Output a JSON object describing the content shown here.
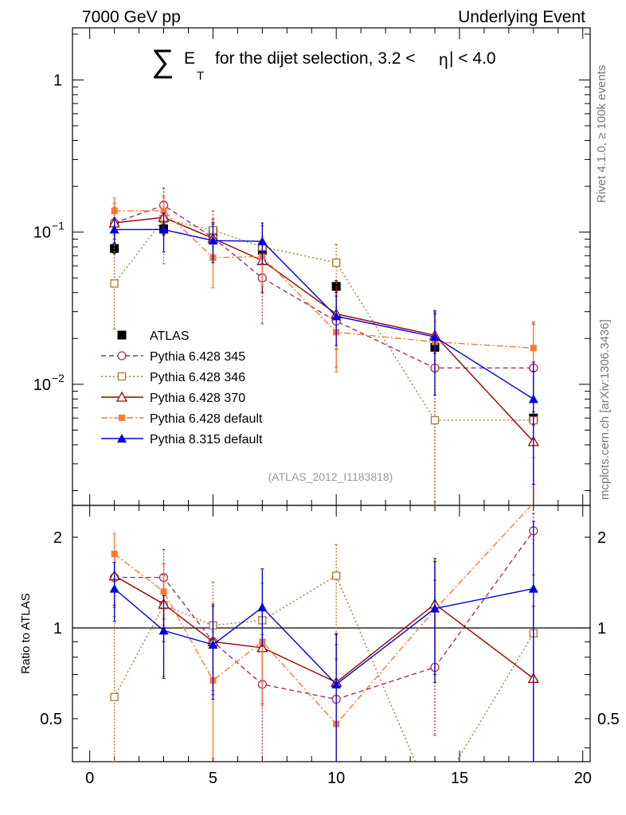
{
  "header": {
    "left": "7000 GeV pp",
    "right": "Underlying Event"
  },
  "side_text": {
    "rivet": "Rivet 4.1.0, ≥ 100k events",
    "mcplots": "mcplots.cern.ch [arXiv:1306.3436]"
  },
  "chart_data": [
    {
      "type": "scatter",
      "title": "∑ E_T for the dijet selection, 3.2 <|η| < 4.0",
      "title_parts": {
        "sum": "∑",
        "E": "E",
        "T": "T",
        "rest1": "for the dijet selection, 3.2 <",
        "eta": "η",
        "rest2": "| < 4.0"
      },
      "analysis_label": "(ATLAS_2012_I1183818)",
      "xlim": [
        -0.7,
        20.3
      ],
      "ylim": [
        0.0016,
        2.2
      ],
      "yscale": "log",
      "yticks": [
        {
          "value": 0.01,
          "base": "10",
          "exp": "−2"
        },
        {
          "value": 0.1,
          "base": "10",
          "exp": "−1"
        },
        {
          "value": 1,
          "label": "1"
        }
      ],
      "series": [
        {
          "name": "ATLAS",
          "color": "#000000",
          "marker": "square-filled",
          "line": "none",
          "x": [
            1,
            3,
            5,
            7,
            10,
            14,
            18
          ],
          "y": [
            0.078,
            0.105,
            0.101,
            0.076,
            0.044,
            0.0175,
            0.006
          ],
          "err_up": [
            0.006,
            0.008,
            0.007,
            0.006,
            0.004,
            0.0015,
            0.0006
          ],
          "err_dn": [
            0.006,
            0.008,
            0.007,
            0.006,
            0.004,
            0.0015,
            0.0006
          ]
        },
        {
          "name": "Pythia 6.428 345",
          "color": "#993366",
          "marker": "circle-open",
          "line": "dashed",
          "x": [
            1,
            3,
            5,
            7,
            10,
            14,
            18
          ],
          "y": [
            0.115,
            0.15,
            0.092,
            0.05,
            0.026,
            0.0128,
            0.0128
          ],
          "err_up": [
            0.04,
            0.045,
            0.03,
            0.025,
            0.015,
            0.017,
            0.012
          ],
          "err_dn": [
            0.03,
            0.035,
            0.025,
            0.025,
            0.013,
            0.0125,
            0.0125
          ]
        },
        {
          "name": "Pythia 6.428 346",
          "color": "#AA7733",
          "marker": "square-open",
          "line": "dotted",
          "x": [
            1,
            3,
            5,
            7,
            10,
            14,
            18
          ],
          "y": [
            0.046,
            0.122,
            0.103,
            0.08,
            0.063,
            0.0058,
            0.0058
          ],
          "err_up": [
            0.05,
            0.05,
            0.035,
            0.03,
            0.02,
            0.024,
            0.02
          ],
          "err_dn": [
            0.023,
            0.06,
            0.04,
            0.035,
            0.05,
            0.0057,
            0.0057
          ]
        },
        {
          "name": "Pythia 6.428 370",
          "color": "#990000",
          "marker": "triangle-open",
          "line": "solid",
          "x": [
            1,
            3,
            5,
            7,
            10,
            14,
            18
          ],
          "y": [
            0.115,
            0.125,
            0.091,
            0.065,
            0.029,
            0.021,
            0.0042
          ],
          "err_up": [
            0.03,
            0.035,
            0.025,
            0.025,
            0.015,
            0.008,
            0.008
          ],
          "err_dn": [
            0.025,
            0.03,
            0.02,
            0.025,
            0.012,
            0.009,
            0.0041
          ]
        },
        {
          "name": "Pythia 6.428 default",
          "color": "#FF7733",
          "marker": "square-filled-small",
          "line": "dashdot",
          "x": [
            1,
            3,
            5,
            7,
            10,
            14,
            18
          ],
          "y": [
            0.138,
            0.138,
            0.068,
            0.069,
            0.022,
            0.019,
            0.0173
          ],
          "err_up": [
            0.03,
            0.03,
            0.02,
            0.025,
            0.01,
            0.007,
            0.008
          ],
          "err_dn": [
            0.03,
            0.03,
            0.025,
            0.025,
            0.01,
            0.007,
            0.014
          ]
        },
        {
          "name": "Pythia 8.315 default",
          "color": "#0000DD",
          "marker": "triangle-filled",
          "line": "solid",
          "x": [
            1,
            3,
            5,
            7,
            10,
            14,
            18
          ],
          "y": [
            0.104,
            0.104,
            0.088,
            0.087,
            0.028,
            0.0205,
            0.008
          ],
          "err_up": [
            0.02,
            0.03,
            0.025,
            0.028,
            0.01,
            0.01,
            0.006
          ],
          "err_dn": [
            0.02,
            0.03,
            0.025,
            0.025,
            0.01,
            0.012,
            0.0058
          ]
        }
      ]
    },
    {
      "type": "scatter",
      "ylabel": "Ratio to ATLAS",
      "xlim": [
        -0.7,
        20.3
      ],
      "ylim": [
        0.36,
        2.55
      ],
      "yscale": "log",
      "yticks": [
        {
          "value": 0.5,
          "label": "0.5"
        },
        {
          "value": 1,
          "label": "1"
        },
        {
          "value": 2,
          "label": "2"
        }
      ],
      "xticks": [
        0,
        5,
        10,
        15,
        20
      ],
      "reference_line": 1,
      "series": [
        {
          "name": "Pythia 6.428 345",
          "color": "#993366",
          "marker": "circle-open",
          "line": "dashed",
          "x": [
            1,
            3,
            5,
            7,
            10,
            14,
            18
          ],
          "y": [
            1.47,
            1.47,
            0.9,
            0.65,
            0.58,
            0.74,
            2.1
          ],
          "err_up": [
            0.3,
            0.35,
            0.3,
            0.3,
            0.3,
            0.7,
            0.3
          ],
          "err_dn": [
            0.3,
            0.4,
            0.3,
            0.35,
            0.25,
            0.3,
            0.6
          ]
        },
        {
          "name": "Pythia 6.428 346",
          "color": "#AA7733",
          "marker": "square-open",
          "line": "dotted",
          "x": [
            1,
            3,
            5,
            7,
            10,
            14,
            18,
            13.4,
            14.6
          ],
          "y": [
            0.59,
            1.19,
            1.02,
            1.06,
            1.49,
            0.33,
            0.96,
            0.33,
            0.33
          ],
          "points_visible": [
            true,
            true,
            true,
            true,
            true,
            false,
            true,
            false,
            false
          ],
          "err_up": [
            0.5,
            0.45,
            0.4,
            0.35,
            0.4,
            0.5,
            0.4,
            0,
            0
          ],
          "err_dn": [
            0.3,
            0.5,
            0.4,
            0.4,
            0.7,
            0.3,
            0.6,
            0,
            0
          ]
        },
        {
          "name": "Pythia 6.428 370",
          "color": "#990000",
          "marker": "triangle-open",
          "line": "solid",
          "x": [
            1,
            3,
            5,
            7,
            10,
            14,
            18
          ],
          "y": [
            1.49,
            1.2,
            0.9,
            0.86,
            0.66,
            1.2,
            0.68
          ],
          "err_up": [
            0.3,
            0.3,
            0.3,
            0.3,
            0.3,
            0.5,
            0.5
          ],
          "err_dn": [
            0.3,
            0.3,
            0.3,
            0.3,
            0.3,
            0.5,
            0.4
          ]
        },
        {
          "name": "Pythia 6.428 default",
          "color": "#FF7733",
          "marker": "square-filled-small",
          "line": "dashdot",
          "x": [
            1,
            3,
            5,
            7,
            10,
            14,
            18,
            19.8
          ],
          "y": [
            1.76,
            1.32,
            0.67,
            0.9,
            0.48,
            1.15,
            2.6,
            2.6
          ],
          "points_visible": [
            true,
            true,
            true,
            true,
            true,
            false,
            false,
            false
          ],
          "err_up": [
            0.3,
            0.3,
            0.3,
            0.3,
            0.3,
            0.5,
            0,
            0
          ],
          "err_dn": [
            0.3,
            0.3,
            0.3,
            0.35,
            0.3,
            0.5,
            0,
            0
          ]
        },
        {
          "name": "Pythia 8.315 default",
          "color": "#0000DD",
          "marker": "triangle-filled",
          "line": "solid",
          "x": [
            1,
            3,
            5,
            7,
            10,
            14,
            18
          ],
          "y": [
            1.35,
            0.98,
            0.88,
            1.17,
            0.65,
            1.16,
            1.35
          ],
          "err_up": [
            0.3,
            0.3,
            0.3,
            0.4,
            0.3,
            0.5,
            0.9
          ],
          "err_dn": [
            0.3,
            0.3,
            0.3,
            0.3,
            0.3,
            0.5,
            1.0
          ]
        }
      ]
    }
  ]
}
